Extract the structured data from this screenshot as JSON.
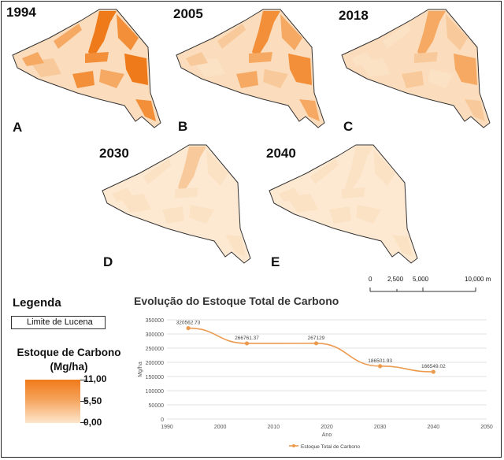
{
  "maps": [
    {
      "year": "1994",
      "letter": "A"
    },
    {
      "year": "2005",
      "letter": "B"
    },
    {
      "year": "2018",
      "letter": "C"
    },
    {
      "year": "2030",
      "letter": "D"
    },
    {
      "year": "2040",
      "letter": "E"
    }
  ],
  "scale": {
    "ticks": [
      "0",
      "2,500",
      "5,000",
      "10,000 m"
    ]
  },
  "legend": {
    "title": "Legenda",
    "boundary_label": "Limite de Lucena",
    "stock_title": "Estoque de Carbono (Mg/ha)",
    "max_label": "11,00",
    "mid_label": "5,50",
    "min_label": "0,00"
  },
  "colors": {
    "high": "#f07a1a",
    "low": "#fde6cc",
    "line": "#ec9a4e"
  },
  "chart_data": {
    "type": "line",
    "title": "Evolução do Estoque Total de Carbono",
    "xlabel": "Ano",
    "ylabel": "Mg/ha",
    "x": [
      1994,
      2005,
      2018,
      2030,
      2040
    ],
    "series": [
      {
        "name": "Estoque Total de Carbono",
        "values": [
          320562.73,
          266761.37,
          267129,
          186501.93,
          166549.02
        ],
        "labels": [
          "320562.73",
          "266761.37",
          "267129",
          "186501.93",
          "166549.02"
        ]
      }
    ],
    "xlim": [
      1990,
      2050
    ],
    "ylim": [
      0,
      350000
    ],
    "xticks": [
      "1990",
      "2000",
      "2010",
      "2020",
      "2030",
      "2040",
      "2050"
    ],
    "yticks": [
      "0",
      "50000",
      "100000",
      "150000",
      "200000",
      "250000",
      "300000",
      "350000"
    ],
    "grid": true,
    "legend_position": "bottom"
  }
}
